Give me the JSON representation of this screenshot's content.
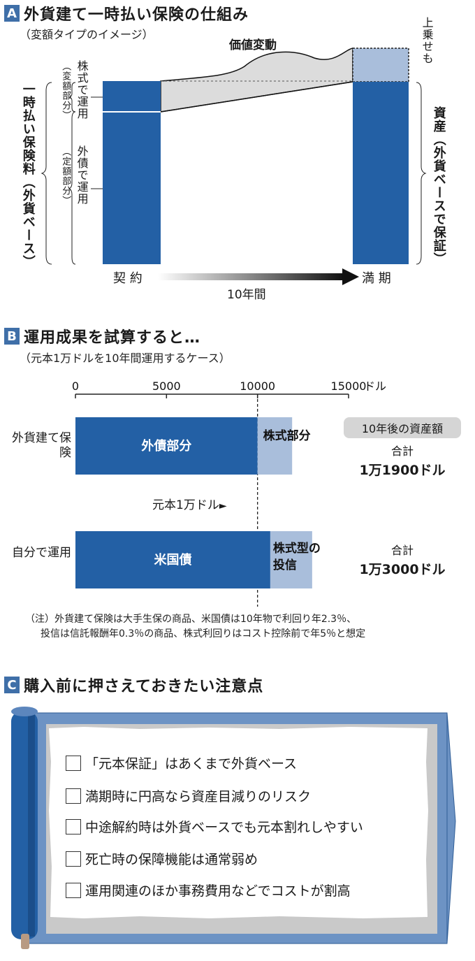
{
  "section_a": {
    "badge": "A",
    "title": "外貨建て一時払い保険の仕組み",
    "subtitle": "（変額タイプのイメージ）",
    "value_change": "価値変動",
    "premium_label": "一時払い保険料（外貨ベース）",
    "stock_label": "株式で運用",
    "stock_sub": "（変額部分）",
    "bond_label": "外債で運用",
    "bond_sub": "（定額部分）",
    "bonus_label": "上乗せも",
    "assets_label": "資産（外貨ベースで保証）",
    "contract": "契 約",
    "maturity": "満 期",
    "period": "10年間",
    "colors": {
      "blue": "#2360a5",
      "light_blue": "#a9bedb",
      "gray": "#dcdcdc"
    }
  },
  "section_b": {
    "badge": "B",
    "title": "運用成果を試算すると…",
    "subtitle": "（元本1万ドルを10年間運用するケース）",
    "unit": "ドル",
    "principal_label": "元本1万ドル",
    "result_label": "10年後の資産額",
    "rows": [
      {
        "label": "外貨建て保険",
        "seg1_label": "外債部分",
        "seg2_label": "株式部分",
        "seg1": 10000,
        "seg2": 1900,
        "total_key": "合計",
        "total_value": "1万1900ドル"
      },
      {
        "label": "自分で運用",
        "seg1_label": "米国債",
        "seg2_label": "株式型の投信",
        "seg1": 10700,
        "seg2": 2300,
        "total_key": "合計",
        "total_value": "1万3000ドル"
      }
    ],
    "note_line1": "（注）外貨建て保険は大手生保の商品、米国債は10年物で利回り年2.3％、",
    "note_line2": "投信は信託報酬年0.3％の商品、株式利回りはコスト控除前で年5％と想定"
  },
  "chart_data": {
    "type": "bar",
    "orientation": "horizontal",
    "stacked": true,
    "categories": [
      "外貨建て保険",
      "自分で運用"
    ],
    "series": [
      {
        "name": "外債部分 / 米国債",
        "values": [
          10000,
          10700
        ]
      },
      {
        "name": "株式部分 / 株式型の投信",
        "values": [
          1900,
          2300
        ]
      }
    ],
    "xlim": [
      0,
      15000
    ],
    "ticks": [
      0,
      5000,
      10000,
      15000
    ],
    "xlabel": "ドル",
    "reference_line": 10000
  },
  "section_c": {
    "badge": "C",
    "title": "購入前に押さえておきたい注意点",
    "items": [
      "「元本保証」はあくまで外貨ベース",
      "満期時に円高なら資産目減りのリスク",
      "中途解約時は外貨ベースでも元本割れしやすい",
      "死亡時の保障機能は通常弱め",
      "運用関連のほか事務費用などでコストが割高"
    ]
  }
}
